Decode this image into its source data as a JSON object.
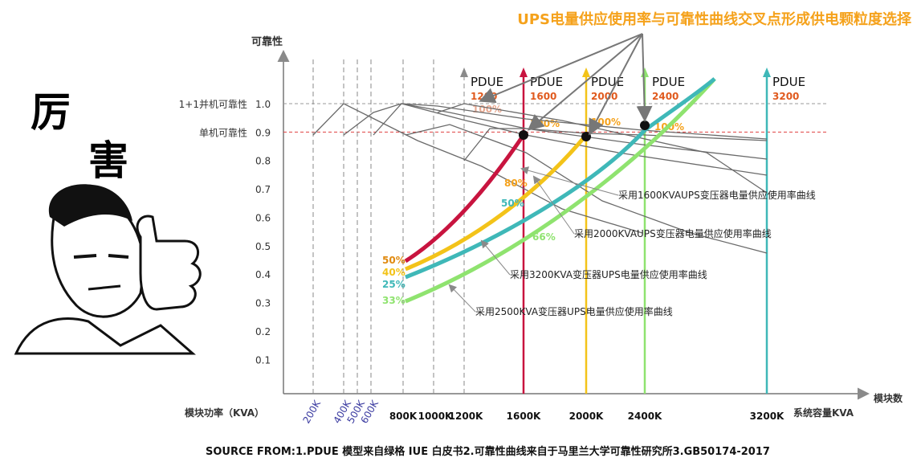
{
  "header": {
    "title": "UPS电量供应使用率与可靠性曲线交叉点形成供电颗粒度选择",
    "exclaim_1": "厉",
    "exclaim_2": "害"
  },
  "source_line": "SOURCE FROM:1.PDUE 模型来自绿格 IUE 白皮书2.可靠性曲线来自于马里兰大学可靠性研究所3.GB50174-2017",
  "colors": {
    "title": "#f5a21c",
    "grey_axis": "#777777",
    "red": "#c8143f",
    "yellow": "#f3c319",
    "teal": "#3fb8b8",
    "green": "#8fe36f",
    "ref_line": "#e04040",
    "pdue_number": "#e05a1e"
  },
  "chart_data": {
    "type": "line",
    "ylabel": "可靠性",
    "xlabel_left": "模块功率（KVA）",
    "xlabel_right": "系统容量KVA",
    "x_axis_end_label": "模块数",
    "ylim": [
      0,
      1.0
    ],
    "y_ticks": [
      "0.1",
      "0.2",
      "0.3",
      "0.4",
      "0.5",
      "0.6",
      "0.7",
      "0.8",
      "0.9",
      "1.0"
    ],
    "y_special": [
      {
        "label": "1+1并机可靠性",
        "value": 1.0
      },
      {
        "label": "单机可靠性",
        "value": 0.9
      }
    ],
    "module_ticks": [
      "200K",
      "400K",
      "500K",
      "600K",
      "800K",
      "1000K",
      "1200K"
    ],
    "system_ticks": [
      "1600K",
      "2000K",
      "2400K",
      "3200K"
    ],
    "pdue": [
      {
        "label": "PDUE",
        "value": "1200",
        "pct": "100%"
      },
      {
        "label": "PDUE",
        "value": "1600",
        "pct": "100%"
      },
      {
        "label": "PDUE",
        "value": "2000",
        "pct": "100%"
      },
      {
        "label": "PDUE",
        "value": "2400",
        "pct": "100%"
      },
      {
        "label": "PDUE",
        "value": "3200",
        "pct": ""
      }
    ],
    "series": [
      {
        "name": "采用1600KVAUPS变压器电量供应使用率曲线",
        "start_pct": "50%",
        "mid_pct": "80%"
      },
      {
        "name": "采用2000KVAUPS变压器电量供应使用率曲线",
        "start_pct": "40%",
        "mid_pct": "50%"
      },
      {
        "name": "采用3200KVA变压器UPS电量供应使用率曲线",
        "start_pct": "25%",
        "mid_pct": ""
      },
      {
        "name": "采用2500KVA变压器UPS电量供应使用率曲线",
        "start_pct": "33%",
        "mid_pct": "66%"
      }
    ]
  }
}
